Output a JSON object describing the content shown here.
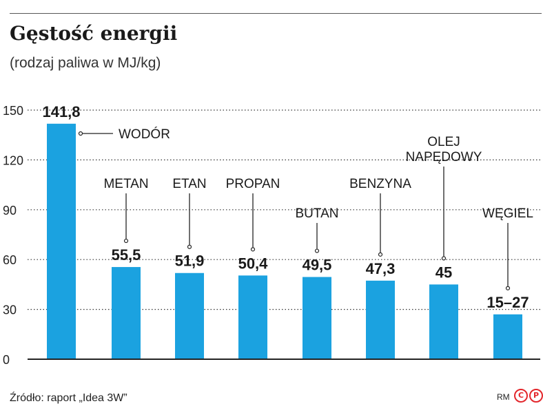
{
  "header": {
    "title": "Gęstość energii",
    "subtitle": "(rodzaj paliwa w MJ/kg)"
  },
  "footer": {
    "source": "Źródło: raport „Idea 3W”",
    "author": "RM",
    "logo_c": "C",
    "logo_p": "P"
  },
  "colors": {
    "bar": "#1ba2e0",
    "grid": "#333333",
    "text": "#1a1a1a"
  },
  "chart_data": {
    "type": "bar",
    "title": "Gęstość energii",
    "subtitle": "(rodzaj paliwa w MJ/kg)",
    "xlabel": "",
    "ylabel": "",
    "ylim": [
      0,
      150
    ],
    "yticks": [
      "0",
      "30",
      "60",
      "90",
      "120",
      "150"
    ],
    "grid": true,
    "categories": [
      "WODÓR",
      "METAN",
      "ETAN",
      "PROPAN",
      "BUTAN",
      "BENZYNA",
      "OLEJ NAPĘDOWY",
      "WĘGIEL"
    ],
    "category_lines": [
      [
        "WODÓR"
      ],
      [
        "METAN"
      ],
      [
        "ETAN"
      ],
      [
        "PROPAN"
      ],
      [
        "BUTAN"
      ],
      [
        "BENZYNA"
      ],
      [
        "OLEJ",
        "NAPĘDOWY"
      ],
      [
        "WĘGIEL"
      ]
    ],
    "values": [
      141.8,
      55.5,
      51.9,
      50.4,
      49.5,
      47.3,
      45,
      27
    ],
    "value_labels": [
      "141,8",
      "55,5",
      "51,9",
      "50,4",
      "49,5",
      "47,3",
      "45",
      "15–27"
    ]
  }
}
